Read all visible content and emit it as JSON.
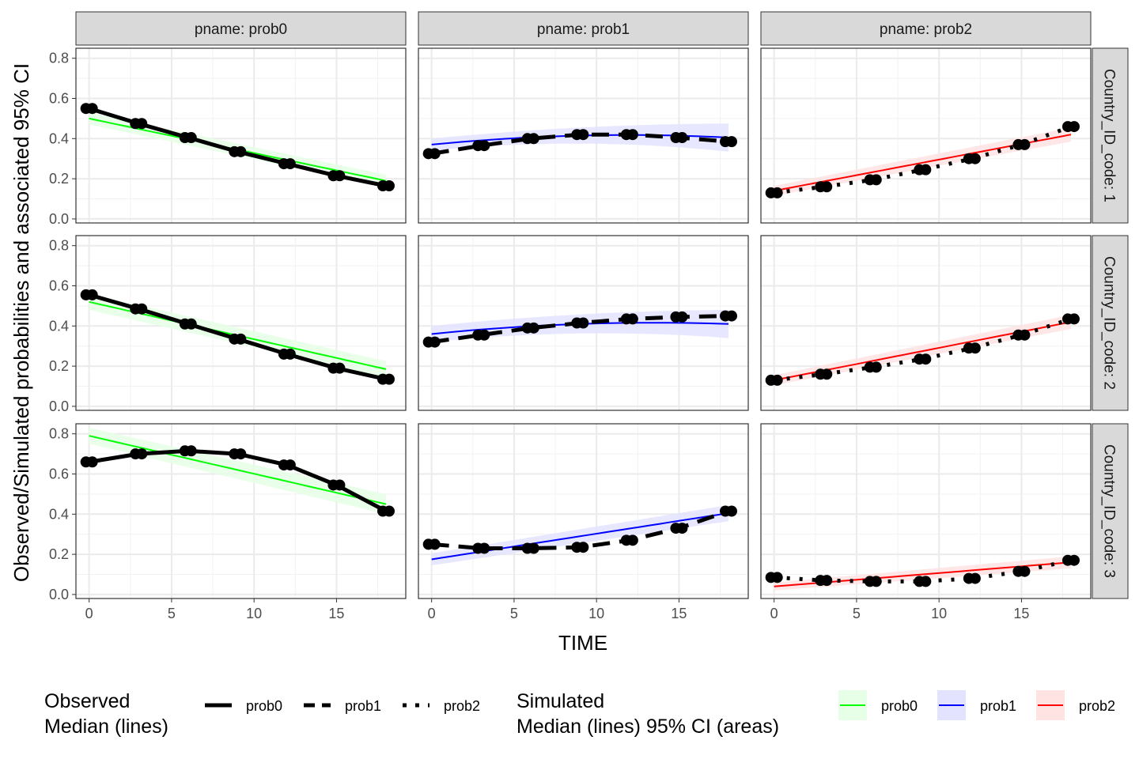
{
  "chart_data": {
    "type": "line",
    "facet_cols": [
      "prob0",
      "prob1",
      "prob2"
    ],
    "facet_rows": [
      "1",
      "2",
      "3"
    ],
    "col_strip_prefix": "pname: ",
    "row_strip_prefix": "Country_ID_code: ",
    "col_strip_labels": [
      "pname: prob0",
      "pname: prob1",
      "pname: prob2"
    ],
    "row_strip_labels": [
      "Country_ID_code: 1",
      "Country_ID_code: 2",
      "Country_ID_code: 3"
    ],
    "xlabel": "TIME",
    "ylabel": "Observed/Simulated probabilities and associated 95% CI",
    "xlim": [
      -0.8,
      19.2
    ],
    "ylim": [
      -0.02,
      0.85
    ],
    "x_ticks": [
      0,
      5,
      10,
      15
    ],
    "x_tick_labels": [
      "0",
      "5",
      "10",
      "15"
    ],
    "y_ticks": [
      0,
      0.2,
      0.4,
      0.6,
      0.8
    ],
    "y_tick_labels": [
      "0.0",
      "0.2",
      "0.4",
      "0.6",
      "0.8"
    ],
    "observed_x": [
      0,
      3,
      6,
      9,
      12,
      15,
      18
    ],
    "colors": {
      "prob0": "#00ff00",
      "prob1": "#0000ff",
      "prob2": "#ff0000",
      "observed": "#000000",
      "strip_bg": "#d9d9d9"
    },
    "panels": [
      {
        "row": "1",
        "col": "prob0",
        "observed": [
          0.55,
          0.475,
          0.405,
          0.335,
          0.275,
          0.215,
          0.165
        ],
        "simulated": {
          "x0": 0,
          "y0": 0.5,
          "x1": 18,
          "y1": 0.19,
          "ci0": 0.03,
          "ci1": 0.03
        }
      },
      {
        "row": "1",
        "col": "prob1",
        "observed": [
          0.325,
          0.365,
          0.4,
          0.42,
          0.42,
          0.405,
          0.385
        ],
        "simulated": {
          "x0": 0,
          "y0": 0.37,
          "x1": 9,
          "y1": 0.415,
          "x2": 18,
          "y2": 0.405,
          "ci0": 0.03,
          "ci1": 0.07
        }
      },
      {
        "row": "1",
        "col": "prob2",
        "observed": [
          0.13,
          0.16,
          0.195,
          0.245,
          0.3,
          0.37,
          0.46
        ],
        "simulated": {
          "x0": 0,
          "y0": 0.14,
          "x1": 18,
          "y1": 0.42,
          "ci0": 0.025,
          "ci1": 0.035
        }
      },
      {
        "row": "2",
        "col": "prob0",
        "observed": [
          0.555,
          0.485,
          0.41,
          0.335,
          0.26,
          0.19,
          0.135
        ],
        "simulated": {
          "x0": 0,
          "y0": 0.52,
          "x1": 18,
          "y1": 0.185,
          "ci0": 0.04,
          "ci1": 0.04
        }
      },
      {
        "row": "2",
        "col": "prob1",
        "observed": [
          0.32,
          0.355,
          0.39,
          0.415,
          0.435,
          0.445,
          0.45
        ],
        "simulated": {
          "x0": 0,
          "y0": 0.36,
          "x1": 9,
          "y1": 0.41,
          "x2": 18,
          "y2": 0.41,
          "ci0": 0.04,
          "ci1": 0.07
        }
      },
      {
        "row": "2",
        "col": "prob2",
        "observed": [
          0.13,
          0.16,
          0.195,
          0.235,
          0.29,
          0.355,
          0.435
        ],
        "simulated": {
          "x0": 0,
          "y0": 0.13,
          "x1": 18,
          "y1": 0.42,
          "ci0": 0.025,
          "ci1": 0.035
        }
      },
      {
        "row": "3",
        "col": "prob0",
        "observed": [
          0.66,
          0.7,
          0.715,
          0.7,
          0.645,
          0.545,
          0.415
        ],
        "simulated": {
          "x0": 0,
          "y0": 0.79,
          "x1": 18,
          "y1": 0.45,
          "ci0": 0.04,
          "ci1": 0.05
        }
      },
      {
        "row": "3",
        "col": "prob1",
        "observed": [
          0.25,
          0.23,
          0.23,
          0.235,
          0.27,
          0.33,
          0.415
        ],
        "simulated": {
          "x0": 0,
          "y0": 0.175,
          "x1": 18,
          "y1": 0.405,
          "ci0": 0.03,
          "ci1": 0.04
        }
      },
      {
        "row": "3",
        "col": "prob2",
        "observed": [
          0.085,
          0.07,
          0.065,
          0.065,
          0.08,
          0.115,
          0.17
        ],
        "simulated": {
          "x0": 0,
          "y0": 0.04,
          "x1": 18,
          "y1": 0.16,
          "ci0": 0.02,
          "ci1": 0.03
        }
      }
    ],
    "legend": {
      "position": "bottom",
      "observed": {
        "title_line1": "Observed",
        "title_line2": "Median (lines)",
        "items": [
          {
            "label": "prob0",
            "linetype": "solid"
          },
          {
            "label": "prob1",
            "linetype": "dashed"
          },
          {
            "label": "prob2",
            "linetype": "dotted"
          }
        ]
      },
      "simulated": {
        "title_line1": "Simulated",
        "title_line2": "Median (lines) 95% CI (areas)",
        "items": [
          {
            "label": "prob0",
            "color": "#00ff00",
            "fill": "#e6ffe6"
          },
          {
            "label": "prob1",
            "color": "#0000ff",
            "fill": "#e3e3ff"
          },
          {
            "label": "prob2",
            "color": "#ff0000",
            "fill": "#ffe3e3"
          }
        ]
      }
    }
  }
}
